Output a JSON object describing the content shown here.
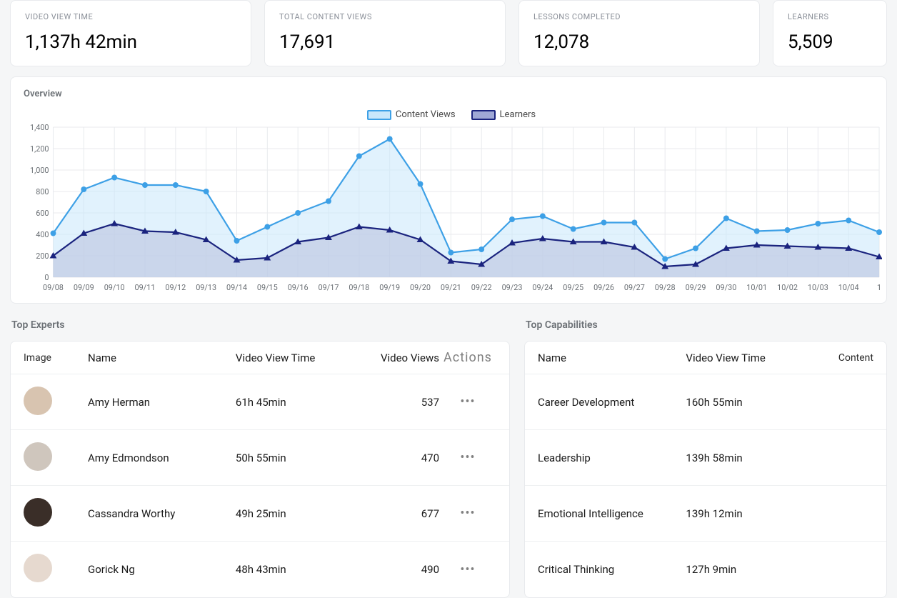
{
  "stats": [
    {
      "label": "VIDEO VIEW TIME",
      "value": "1,137h 42min"
    },
    {
      "label": "TOTAL CONTENT VIEWS",
      "value": "17,691"
    },
    {
      "label": "LESSONS COMPLETED",
      "value": "12,078"
    },
    {
      "label": "LEARNERS",
      "value": "5,509"
    }
  ],
  "overview": {
    "title": "Overview",
    "legend": {
      "views": "Content Views",
      "learners": "Learners"
    },
    "chart": {
      "type": "line-area",
      "ylim": [
        0,
        1400
      ],
      "ytick_step": 200,
      "yticks": [
        "0",
        "200",
        "400",
        "600",
        "800",
        "1,000",
        "1,200",
        "1,400"
      ],
      "xlabels": [
        "09/08",
        "09/09",
        "09/10",
        "09/11",
        "09/12",
        "09/13",
        "09/14",
        "09/15",
        "09/16",
        "09/17",
        "09/18",
        "09/19",
        "09/20",
        "09/21",
        "09/22",
        "09/23",
        "09/24",
        "09/25",
        "09/26",
        "09/27",
        "09/28",
        "09/29",
        "09/30",
        "10/01",
        "10/02",
        "10/03",
        "10/04",
        "1"
      ],
      "series": {
        "content_views": {
          "color": "#3da0e6",
          "fill": "#c9e7fb",
          "marker": "circle",
          "values": [
            410,
            820,
            930,
            860,
            860,
            800,
            340,
            470,
            600,
            710,
            1130,
            1290,
            870,
            230,
            260,
            540,
            570,
            450,
            510,
            510,
            170,
            270,
            550,
            430,
            440,
            500,
            530,
            420
          ]
        },
        "learners": {
          "color": "#1a237e",
          "fill": "#b8bfdd",
          "marker": "triangle",
          "values": [
            200,
            410,
            500,
            430,
            420,
            350,
            160,
            180,
            330,
            370,
            470,
            440,
            350,
            150,
            120,
            320,
            360,
            330,
            330,
            280,
            100,
            120,
            270,
            300,
            290,
            280,
            270,
            190
          ]
        }
      },
      "grid_color": "#e8eaed",
      "axis_color": "#9aa0a6",
      "label_fontsize": 11,
      "background_color": "#ffffff"
    }
  },
  "experts": {
    "title": "Top Experts",
    "columns": {
      "image": "Image",
      "name": "Name",
      "vvt": "Video View Time",
      "views": "Video Views",
      "actions": "Actions"
    },
    "rows": [
      {
        "name": "Amy Herman",
        "vvt": "61h 45min",
        "views": "537",
        "avatar_bg": "#d8c4b0"
      },
      {
        "name": "Amy Edmondson",
        "vvt": "50h 55min",
        "views": "470",
        "avatar_bg": "#cfc6bd"
      },
      {
        "name": "Cassandra Worthy",
        "vvt": "49h 25min",
        "views": "677",
        "avatar_bg": "#3a2e28"
      },
      {
        "name": "Gorick Ng",
        "vvt": "48h 43min",
        "views": "490",
        "avatar_bg": "#e6d9cf"
      }
    ]
  },
  "capabilities": {
    "title": "Top Capabilities",
    "columns": {
      "name": "Name",
      "vvt": "Video View Time",
      "content": "Content"
    },
    "rows": [
      {
        "name": "Career Development",
        "vvt": "160h 55min"
      },
      {
        "name": "Leadership",
        "vvt": "139h 58min"
      },
      {
        "name": "Emotional Intelligence",
        "vvt": "139h 12min"
      },
      {
        "name": "Critical Thinking",
        "vvt": "127h 9min"
      }
    ]
  }
}
